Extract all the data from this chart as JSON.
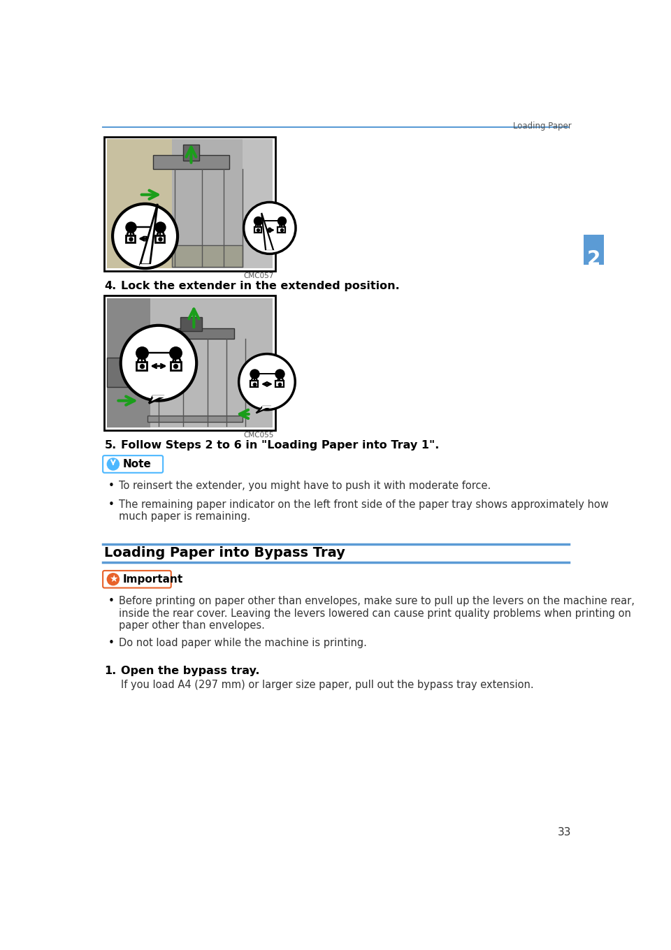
{
  "page_header_right": "Loading Paper",
  "header_line_color": "#5b9bd5",
  "bg_color": "#ffffff",
  "tab_color": "#5b9bd5",
  "tab_text": "2",
  "page_number": "33",
  "step4_label": "4.",
  "step4_text": "Lock the extender in the extended position.",
  "step5_label": "5.",
  "step5_text": "Follow Steps 2 to 6 in \"Loading Paper into Tray 1\".",
  "note_label": "Note",
  "note_icon_color": "#4db8ff",
  "note_border_color": "#4db8ff",
  "note_bullets": [
    "To reinsert the extender, you might have to push it with moderate force.",
    "The remaining paper indicator on the left front side of the paper tray shows approximately how\nmuch paper is remaining."
  ],
  "section_title": "Loading Paper into Bypass Tray",
  "section_line_color": "#5b9bd5",
  "important_label": "Important",
  "important_icon_color": "#e8622a",
  "important_border_color": "#e8622a",
  "important_bullets": [
    "Before printing on paper other than envelopes, make sure to pull up the levers on the machine rear,\ninside the rear cover. Leaving the levers lowered can cause print quality problems when printing on\npaper other than envelopes.",
    "Do not load paper while the machine is printing."
  ],
  "step1_label": "1.",
  "step1_text": "Open the bypass tray.",
  "step1_sub": "If you load A4 (297 mm) or larger size paper, pull out the bypass tray extension.",
  "img1_caption": "CMC057",
  "img2_caption": "CMC055",
  "text_color": "#333333",
  "bold_text_color": "#000000",
  "img_border_color": "#000000",
  "machine_bg": "#b8b8b8",
  "machine_panel": "#d0d0c0",
  "machine_dark": "#606060",
  "green_arrow": "#1a9e1a"
}
